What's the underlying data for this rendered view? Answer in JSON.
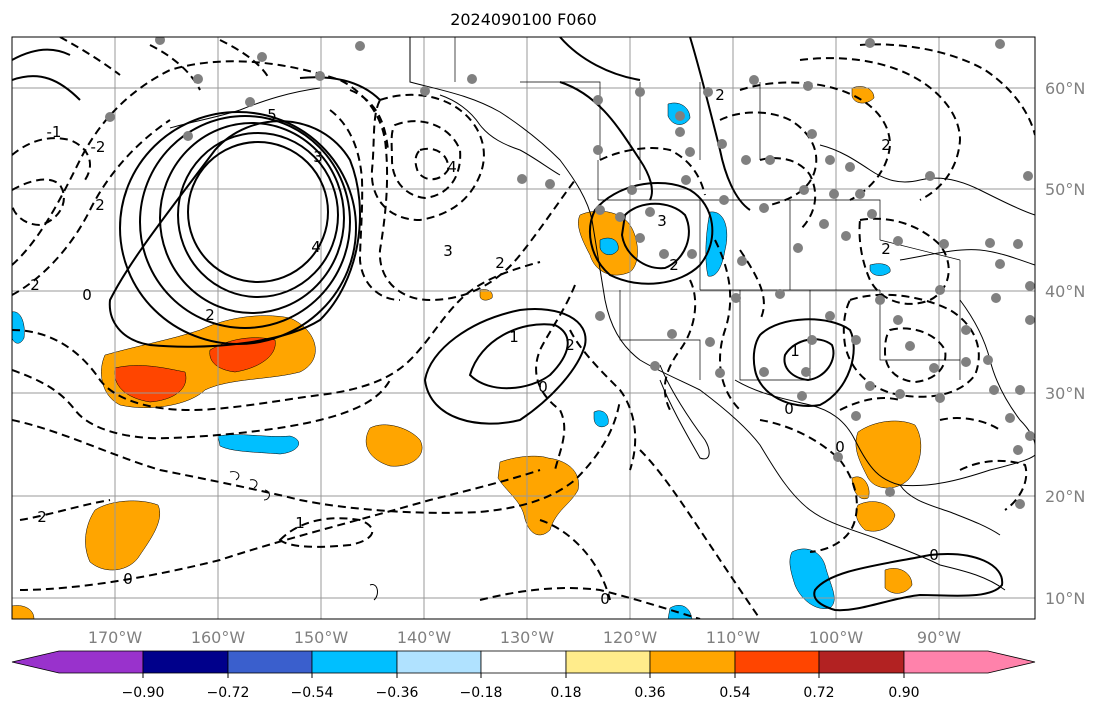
{
  "title": "2024090100 F060",
  "map": {
    "lon_labels": [
      "170°W",
      "160°W",
      "150°W",
      "140°W",
      "130°W",
      "120°W",
      "110°W",
      "100°W",
      "90°W"
    ],
    "lat_labels": [
      "60°N",
      "50°N",
      "40°N",
      "30°N",
      "20°N",
      "10°N"
    ],
    "contour_labels": [
      "2",
      "5",
      "3",
      "4",
      "2",
      "0",
      "2",
      "4",
      "3",
      "2",
      "1",
      "0",
      "2",
      "1",
      "0",
      "2",
      "0",
      "-2",
      "-1",
      "3",
      "2",
      "2",
      "2",
      "2",
      "1",
      "0",
      "0",
      "0"
    ]
  },
  "colorbar": {
    "colors": [
      "#9932cc",
      "#00008b",
      "#3a5fcd",
      "#00bfff",
      "#b0e2ff",
      "#ffffff",
      "#ffec8b",
      "#ffa500",
      "#ff4500",
      "#b22222",
      "#ff82ab"
    ],
    "tick_labels": [
      "−0.90",
      "−0.72",
      "−0.54",
      "−0.36",
      "−0.18",
      "0.18",
      "0.36",
      "0.54",
      "0.72",
      "0.90"
    ]
  }
}
